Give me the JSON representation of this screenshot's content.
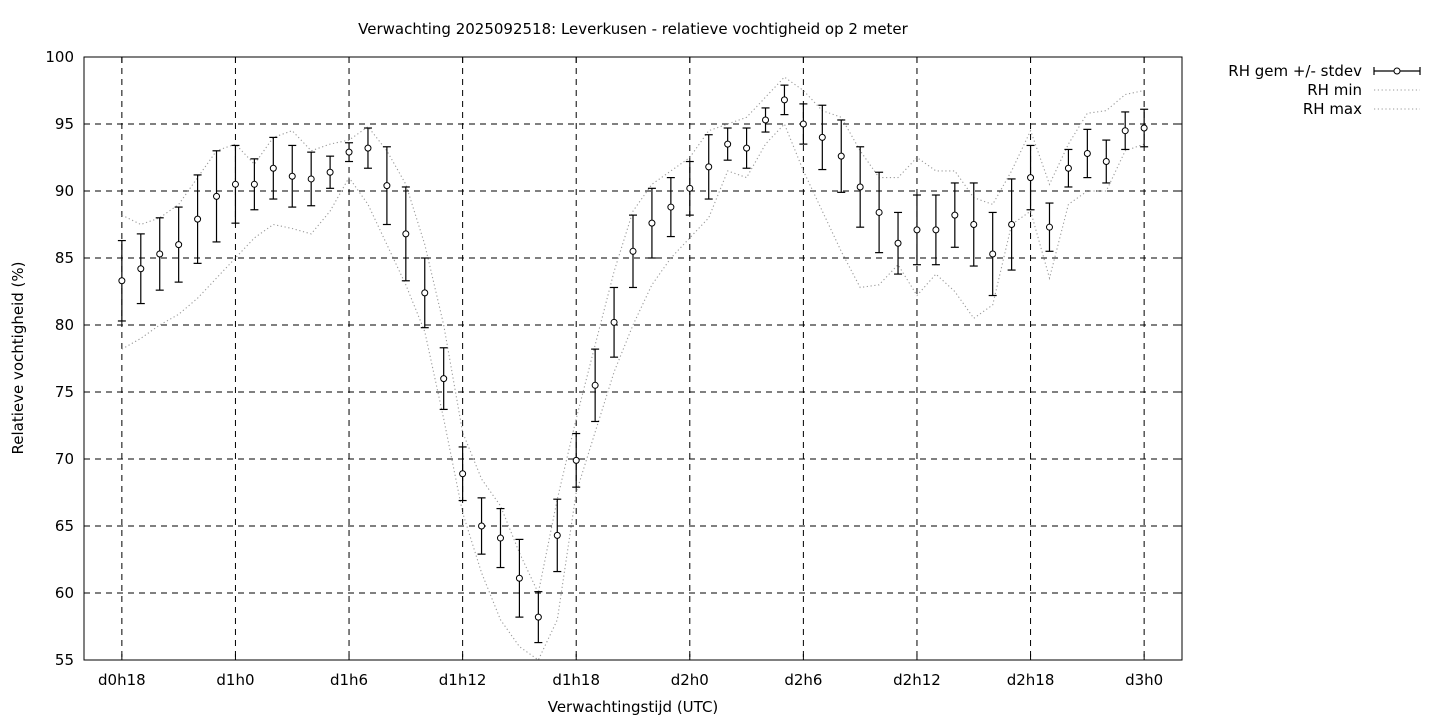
{
  "chart_data": {
    "type": "line",
    "title": "Verwachting 2025092518: Leverkusen - relatieve vochtigheid op 2 meter",
    "xlabel": "Verwachtingstijd (UTC)",
    "ylabel": "Relatieve vochtigheid (%)",
    "ylim": [
      55,
      100
    ],
    "yticks": [
      55,
      60,
      65,
      70,
      75,
      80,
      85,
      90,
      95,
      100
    ],
    "xlim_hours": [
      16,
      74
    ],
    "xticks": [
      {
        "hour": 18,
        "label": "d0h18"
      },
      {
        "hour": 24,
        "label": "d1h0"
      },
      {
        "hour": 30,
        "label": "d1h6"
      },
      {
        "hour": 36,
        "label": "d1h12"
      },
      {
        "hour": 42,
        "label": "d1h18"
      },
      {
        "hour": 48,
        "label": "d2h0"
      },
      {
        "hour": 54,
        "label": "d2h6"
      },
      {
        "hour": 60,
        "label": "d2h12"
      },
      {
        "hour": 66,
        "label": "d2h18"
      },
      {
        "hour": 72,
        "label": "d3h0"
      }
    ],
    "grid": true,
    "legend_position": "outside-top-right",
    "legend": [
      {
        "label": "RH gem +/- stdev",
        "style": "errorbar"
      },
      {
        "label": "RH min",
        "style": "dotted"
      },
      {
        "label": "RH max",
        "style": "dotted"
      }
    ],
    "x_hours": [
      18,
      19,
      20,
      21,
      22,
      23,
      24,
      25,
      26,
      27,
      28,
      29,
      30,
      31,
      32,
      33,
      34,
      35,
      36,
      37,
      38,
      39,
      40,
      41,
      42,
      43,
      44,
      45,
      46,
      47,
      48,
      49,
      50,
      51,
      52,
      53,
      54,
      55,
      56,
      57,
      58,
      59,
      60,
      61,
      62,
      63,
      64,
      65,
      66,
      67,
      68,
      69,
      70,
      71,
      72
    ],
    "series": [
      {
        "name": "RH gem +/- stdev",
        "mean": [
          83.3,
          84.2,
          85.3,
          86.0,
          87.9,
          89.6,
          90.5,
          90.5,
          91.7,
          91.1,
          90.9,
          91.4,
          92.9,
          93.2,
          90.4,
          86.8,
          82.4,
          76.0,
          68.9,
          65.0,
          64.1,
          61.1,
          58.2,
          64.3,
          69.9,
          75.5,
          80.2,
          85.5,
          87.6,
          88.8,
          90.2,
          91.8,
          93.5,
          93.2,
          95.3,
          96.8,
          95.0,
          94.0,
          92.6,
          90.3,
          88.4,
          86.1,
          87.1,
          87.1,
          88.2,
          87.5,
          85.3,
          87.5,
          91.0,
          87.3,
          91.7,
          92.8,
          92.2,
          94.5,
          94.7
        ],
        "stdev": [
          3.0,
          2.6,
          2.7,
          2.8,
          3.3,
          3.4,
          2.9,
          1.9,
          2.3,
          2.3,
          2.0,
          1.2,
          0.7,
          1.5,
          2.9,
          3.5,
          2.6,
          2.3,
          2.0,
          2.1,
          2.2,
          2.9,
          1.9,
          2.7,
          2.0,
          2.7,
          2.6,
          2.7,
          2.6,
          2.2,
          2.0,
          2.4,
          1.2,
          1.5,
          0.9,
          1.1,
          1.5,
          2.4,
          2.7,
          3.0,
          3.0,
          2.3,
          2.6,
          2.6,
          2.4,
          3.1,
          3.1,
          3.4,
          2.4,
          1.8,
          1.4,
          1.8,
          1.6,
          1.4,
          1.4
        ]
      },
      {
        "name": "RH min",
        "values": [
          78.2,
          79.0,
          80.0,
          80.8,
          82.0,
          83.5,
          85.0,
          86.5,
          87.5,
          87.2,
          86.8,
          88.5,
          91.0,
          89.0,
          86.0,
          83.0,
          79.5,
          73.0,
          66.0,
          61.5,
          58.0,
          56.0,
          55.0,
          58.0,
          67.5,
          72.0,
          76.5,
          80.0,
          83.0,
          85.0,
          86.5,
          88.0,
          91.5,
          91.0,
          93.5,
          95.0,
          91.5,
          88.5,
          85.5,
          82.8,
          83.0,
          84.5,
          82.2,
          83.8,
          82.5,
          80.5,
          81.5,
          87.5,
          88.5,
          83.5,
          89.0,
          90.0,
          90.0,
          93.0,
          93.5
        ]
      },
      {
        "name": "RH max",
        "values": [
          88.2,
          87.5,
          88.0,
          89.0,
          91.0,
          93.0,
          93.5,
          92.0,
          94.0,
          94.5,
          93.0,
          93.5,
          93.8,
          94.8,
          93.0,
          90.5,
          86.0,
          80.0,
          72.0,
          68.5,
          66.5,
          63.0,
          60.0,
          67.0,
          73.0,
          78.5,
          84.0,
          88.5,
          90.5,
          91.5,
          92.5,
          94.5,
          95.0,
          95.5,
          97.0,
          98.5,
          97.5,
          96.0,
          95.5,
          93.0,
          91.0,
          91.0,
          92.5,
          91.5,
          91.5,
          89.5,
          89.0,
          91.5,
          94.5,
          90.5,
          93.5,
          95.8,
          96.0,
          97.2,
          97.5
        ]
      }
    ]
  }
}
